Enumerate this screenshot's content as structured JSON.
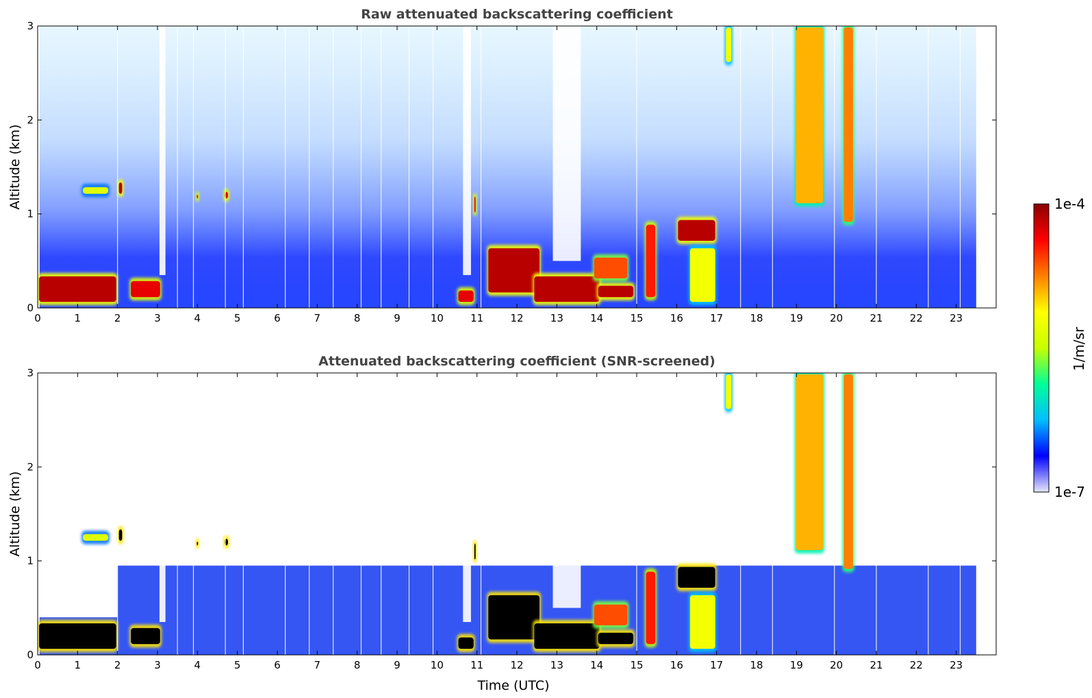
{
  "figure": {
    "colorbar": {
      "label": "1/m/sr",
      "max_label": "1e-4",
      "min_label": "1e-7",
      "scale": "log",
      "range": [
        1e-07,
        0.0001
      ],
      "colormap": [
        "#e6e6fa",
        "#0000ff",
        "#00bfff",
        "#00ff99",
        "#c8ff00",
        "#ffff00",
        "#ff8000",
        "#ff0000",
        "#8b0000"
      ]
    }
  },
  "chart_data": [
    {
      "type": "heatmap",
      "title": "Raw attenuated backscattering coefficient",
      "xlabel": "",
      "ylabel": "Altitude (km)",
      "xlim": [
        0,
        24
      ],
      "ylim": [
        0,
        3
      ],
      "x_ticks": [
        "0",
        "1",
        "2",
        "3",
        "4",
        "5",
        "6",
        "7",
        "8",
        "9",
        "10",
        "11",
        "12",
        "13",
        "14",
        "15",
        "16",
        "17",
        "18",
        "19",
        "20",
        "21",
        "22",
        "23"
      ],
      "y_ticks": [
        "0",
        "1",
        "2",
        "3"
      ],
      "data_extent_x": [
        0,
        23.5
      ],
      "features": [
        {
          "x": [
            0.0,
            2.0
          ],
          "y": [
            0.05,
            0.35
          ],
          "level": 0.95
        },
        {
          "x": [
            2.0,
            2.15
          ],
          "y": [
            1.2,
            1.35
          ],
          "level": 0.95
        },
        {
          "x": [
            2.3,
            3.1
          ],
          "y": [
            0.1,
            0.3
          ],
          "level": 0.9
        },
        {
          "x": [
            1.1,
            1.8
          ],
          "y": [
            1.2,
            1.3
          ],
          "level": 0.55
        },
        {
          "x": [
            3.95,
            4.05
          ],
          "y": [
            1.15,
            1.22
          ],
          "level": 0.9
        },
        {
          "x": [
            4.65,
            4.8
          ],
          "y": [
            1.15,
            1.25
          ],
          "level": 0.9
        },
        {
          "x": [
            10.5,
            10.95
          ],
          "y": [
            0.05,
            0.2
          ],
          "level": 0.9
        },
        {
          "x": [
            10.9,
            11.0
          ],
          "y": [
            1.0,
            1.2
          ],
          "level": 0.9
        },
        {
          "x": [
            11.25,
            12.6
          ],
          "y": [
            0.15,
            0.65
          ],
          "level": 0.95
        },
        {
          "x": [
            12.4,
            14.1
          ],
          "y": [
            0.05,
            0.35
          ],
          "level": 0.95
        },
        {
          "x": [
            14.0,
            14.95
          ],
          "y": [
            0.1,
            0.25
          ],
          "level": 0.95
        },
        {
          "x": [
            13.9,
            14.8
          ],
          "y": [
            0.3,
            0.55
          ],
          "level": 0.8
        },
        {
          "x": [
            15.2,
            15.5
          ],
          "y": [
            0.1,
            0.9
          ],
          "level": 0.85
        },
        {
          "x": [
            16.0,
            17.0
          ],
          "y": [
            0.7,
            0.95
          ],
          "level": 0.95
        },
        {
          "x": [
            16.3,
            17.0
          ],
          "y": [
            0.05,
            0.65
          ],
          "level": 0.6
        },
        {
          "x": [
            17.2,
            17.4
          ],
          "y": [
            2.6,
            3.0
          ],
          "level": 0.6
        },
        {
          "x": [
            18.95,
            19.7
          ],
          "y": [
            1.1,
            3.0
          ],
          "level": 0.7
        },
        {
          "x": [
            20.15,
            20.45
          ],
          "y": [
            0.9,
            3.0
          ],
          "level": 0.75
        }
      ]
    },
    {
      "type": "heatmap",
      "title": "Attenuated backscattering coefficient (SNR-screened)",
      "xlabel": "Time (UTC)",
      "ylabel": "Altitude (km)",
      "xlim": [
        0,
        24
      ],
      "ylim": [
        0,
        3
      ],
      "x_ticks": [
        "0",
        "1",
        "2",
        "3",
        "4",
        "5",
        "6",
        "7",
        "8",
        "9",
        "10",
        "11",
        "12",
        "13",
        "14",
        "15",
        "16",
        "17",
        "18",
        "19",
        "20",
        "21",
        "22",
        "23"
      ],
      "y_ticks": [
        "0",
        "1",
        "2",
        "3"
      ],
      "data_extent_x": [
        0,
        23.5
      ],
      "features": [
        {
          "x": [
            0.0,
            2.0
          ],
          "y": [
            0.05,
            0.35
          ],
          "level": 1.0
        },
        {
          "x": [
            2.0,
            2.15
          ],
          "y": [
            1.2,
            1.35
          ],
          "level": 1.0
        },
        {
          "x": [
            2.3,
            3.1
          ],
          "y": [
            0.1,
            0.3
          ],
          "level": 1.0
        },
        {
          "x": [
            1.1,
            1.8
          ],
          "y": [
            1.2,
            1.3
          ],
          "level": 0.55
        },
        {
          "x": [
            3.95,
            4.05
          ],
          "y": [
            1.15,
            1.22
          ],
          "level": 1.0
        },
        {
          "x": [
            4.65,
            4.8
          ],
          "y": [
            1.15,
            1.25
          ],
          "level": 1.0
        },
        {
          "x": [
            10.5,
            10.95
          ],
          "y": [
            0.05,
            0.2
          ],
          "level": 1.0
        },
        {
          "x": [
            10.9,
            11.0
          ],
          "y": [
            1.0,
            1.2
          ],
          "level": 1.0
        },
        {
          "x": [
            11.25,
            12.6
          ],
          "y": [
            0.15,
            0.65
          ],
          "level": 1.0
        },
        {
          "x": [
            12.4,
            14.1
          ],
          "y": [
            0.05,
            0.35
          ],
          "level": 1.0
        },
        {
          "x": [
            14.0,
            14.95
          ],
          "y": [
            0.1,
            0.25
          ],
          "level": 1.0
        },
        {
          "x": [
            13.9,
            14.8
          ],
          "y": [
            0.3,
            0.55
          ],
          "level": 0.8
        },
        {
          "x": [
            15.2,
            15.5
          ],
          "y": [
            0.1,
            0.9
          ],
          "level": 0.85
        },
        {
          "x": [
            16.0,
            17.0
          ],
          "y": [
            0.7,
            0.95
          ],
          "level": 1.0
        },
        {
          "x": [
            16.3,
            17.0
          ],
          "y": [
            0.05,
            0.65
          ],
          "level": 0.6
        },
        {
          "x": [
            17.2,
            17.4
          ],
          "y": [
            2.6,
            3.0
          ],
          "level": 0.6
        },
        {
          "x": [
            18.95,
            19.7
          ],
          "y": [
            1.1,
            3.0
          ],
          "level": 0.7
        },
        {
          "x": [
            20.15,
            20.45
          ],
          "y": [
            0.9,
            3.0
          ],
          "level": 0.75
        }
      ]
    }
  ]
}
